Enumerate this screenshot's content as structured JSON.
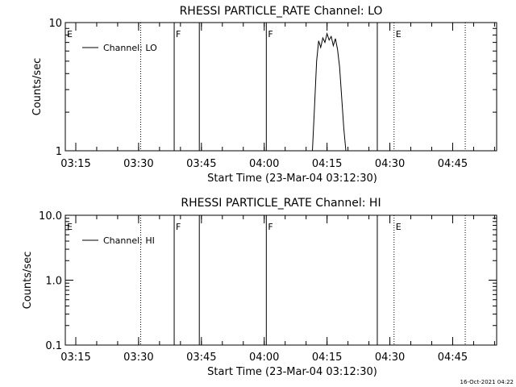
{
  "footer": {
    "timestamp": "16-Oct-2021 04:22"
  },
  "chart_data": [
    {
      "type": "line",
      "title": "RHESSI PARTICLE_RATE Channel: LO",
      "xlabel": "Start Time (23-Mar-04 03:12:30)",
      "ylabel": "Counts/sec",
      "y_scale": "log",
      "ylim": [
        1,
        10
      ],
      "y_ticks": [
        {
          "value": 1,
          "label": "1"
        },
        {
          "value": 10,
          "label": "10"
        }
      ],
      "xlim": [
        "03:12:30",
        "04:55:30"
      ],
      "x_ticks": [
        "03:15",
        "03:30",
        "03:45",
        "04:00",
        "04:15",
        "04:30",
        "04:45"
      ],
      "legend": {
        "placement": "top-left",
        "entries": [
          "Channel: LO"
        ]
      },
      "events": [
        {
          "time": "03:12:30",
          "label": "E",
          "style": "solid"
        },
        {
          "time": "03:30:30",
          "label": "",
          "style": "dotted"
        },
        {
          "time": "03:38:30",
          "label": "F",
          "style": "solid"
        },
        {
          "time": "03:44:30",
          "label": "",
          "style": "solid"
        },
        {
          "time": "04:00:30",
          "label": "F",
          "style": "solid"
        },
        {
          "time": "04:27:00",
          "label": "",
          "style": "solid"
        },
        {
          "time": "04:31:00",
          "label": "E",
          "style": "dotted"
        },
        {
          "time": "04:48:00",
          "label": "",
          "style": "dotted"
        }
      ],
      "series": [
        {
          "name": "Channel: LO",
          "x": [
            "04:11:30",
            "04:12:00",
            "04:12:30",
            "04:13:00",
            "04:13:30",
            "04:14:00",
            "04:14:30",
            "04:15:00",
            "04:15:30",
            "04:16:00",
            "04:16:30",
            "04:17:00",
            "04:17:30",
            "04:18:00",
            "04:18:30",
            "04:19:00",
            "04:19:30"
          ],
          "y": [
            1.0,
            2.2,
            5.0,
            7.2,
            6.4,
            7.6,
            7.0,
            8.2,
            7.3,
            7.8,
            6.6,
            7.5,
            6.2,
            4.5,
            2.6,
            1.5,
            1.0
          ]
        }
      ]
    },
    {
      "type": "line",
      "title": "RHESSI PARTICLE_RATE Channel: HI",
      "xlabel": "Start Time (23-Mar-04 03:12:30)",
      "ylabel": "Counts/sec",
      "y_scale": "log",
      "ylim": [
        0.1,
        10
      ],
      "y_ticks": [
        {
          "value": 0.1,
          "label": "0.1"
        },
        {
          "value": 1,
          "label": "1.0"
        },
        {
          "value": 10,
          "label": "10.0"
        }
      ],
      "xlim": [
        "03:12:30",
        "04:55:30"
      ],
      "x_ticks": [
        "03:15",
        "03:30",
        "03:45",
        "04:00",
        "04:15",
        "04:30",
        "04:45"
      ],
      "legend": {
        "placement": "top-left",
        "entries": [
          "Channel: HI"
        ]
      },
      "events": [
        {
          "time": "03:12:30",
          "label": "E",
          "style": "solid"
        },
        {
          "time": "03:30:30",
          "label": "",
          "style": "dotted"
        },
        {
          "time": "03:38:30",
          "label": "F",
          "style": "solid"
        },
        {
          "time": "03:44:30",
          "label": "",
          "style": "solid"
        },
        {
          "time": "04:00:30",
          "label": "F",
          "style": "solid"
        },
        {
          "time": "04:27:00",
          "label": "",
          "style": "solid"
        },
        {
          "time": "04:31:00",
          "label": "E",
          "style": "dotted"
        },
        {
          "time": "04:48:00",
          "label": "",
          "style": "dotted"
        }
      ],
      "series": [
        {
          "name": "Channel: HI",
          "x": [],
          "y": []
        }
      ]
    }
  ]
}
